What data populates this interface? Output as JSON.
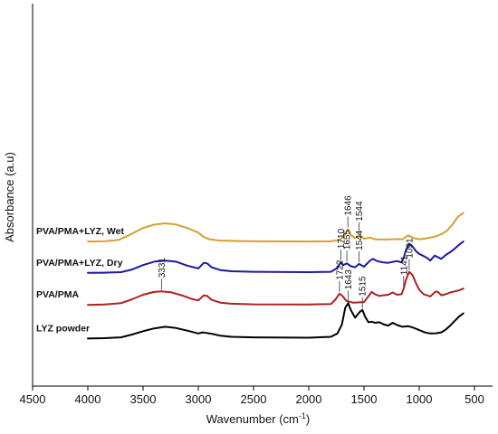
{
  "chart_data": {
    "type": "line",
    "title": "",
    "xlabel": "Wavenumber (cm",
    "xlabel_sup": "-1",
    "xlabel_close": ")",
    "ylabel": "Absorbance (a.u)",
    "xlim": [
      4500,
      500
    ],
    "x_ticks": [
      "4500",
      "4000",
      "3500",
      "3000",
      "2500",
      "2000",
      "1500",
      "1000",
      "500"
    ],
    "series": [
      {
        "name": "PVA/PMA+LYZ, Wet",
        "color": "#d4a030",
        "offset": 8.6,
        "points": [
          [
            4000,
            0.1
          ],
          [
            3850,
            0.12
          ],
          [
            3720,
            0.25
          ],
          [
            3620,
            0.7
          ],
          [
            3500,
            1.3
          ],
          [
            3400,
            1.6
          ],
          [
            3300,
            1.72
          ],
          [
            3200,
            1.62
          ],
          [
            3100,
            1.3
          ],
          [
            3000,
            0.9
          ],
          [
            2950,
            0.5
          ],
          [
            2900,
            0.3
          ],
          [
            2800,
            0.18
          ],
          [
            2500,
            0.12
          ],
          [
            2000,
            0.1
          ],
          [
            1800,
            0.12
          ],
          [
            1720,
            0.25
          ],
          [
            1680,
            0.6
          ],
          [
            1646,
            1.2
          ],
          [
            1620,
            0.7
          ],
          [
            1580,
            0.4
          ],
          [
            1544,
            0.7
          ],
          [
            1500,
            0.35
          ],
          [
            1450,
            0.45
          ],
          [
            1400,
            0.3
          ],
          [
            1300,
            0.28
          ],
          [
            1200,
            0.32
          ],
          [
            1150,
            0.3
          ],
          [
            1100,
            0.65
          ],
          [
            1050,
            0.4
          ],
          [
            1000,
            0.3
          ],
          [
            950,
            0.35
          ],
          [
            900,
            0.45
          ],
          [
            850,
            0.55
          ],
          [
            800,
            0.75
          ],
          [
            750,
            1.05
          ],
          [
            700,
            1.6
          ],
          [
            650,
            2.3
          ],
          [
            600,
            2.65
          ]
        ]
      },
      {
        "name": "PVA/PMA+LYZ, Dry",
        "color": "#1a1aa0",
        "offset": 5.85,
        "points": [
          [
            4000,
            0.05
          ],
          [
            3850,
            0.07
          ],
          [
            3700,
            0.12
          ],
          [
            3600,
            0.35
          ],
          [
            3500,
            0.75
          ],
          [
            3400,
            1.05
          ],
          [
            3300,
            1.15
          ],
          [
            3200,
            1.05
          ],
          [
            3100,
            0.7
          ],
          [
            3000,
            0.45
          ],
          [
            2950,
            0.95
          ],
          [
            2920,
            0.9
          ],
          [
            2880,
            0.55
          ],
          [
            2800,
            0.3
          ],
          [
            2700,
            0.2
          ],
          [
            2500,
            0.15
          ],
          [
            2000,
            0.12
          ],
          [
            1800,
            0.15
          ],
          [
            1740,
            0.5
          ],
          [
            1710,
            1.0
          ],
          [
            1690,
            0.75
          ],
          [
            1655,
            0.9
          ],
          [
            1620,
            0.65
          ],
          [
            1580,
            0.55
          ],
          [
            1544,
            0.85
          ],
          [
            1500,
            0.6
          ],
          [
            1450,
            1.1
          ],
          [
            1420,
            1.3
          ],
          [
            1380,
            1.1
          ],
          [
            1330,
            1.0
          ],
          [
            1280,
            0.95
          ],
          [
            1230,
            1.05
          ],
          [
            1200,
            1.1
          ],
          [
            1160,
            1.0
          ],
          [
            1140,
            1.4
          ],
          [
            1120,
            2.1
          ],
          [
            1091,
            2.65
          ],
          [
            1060,
            2.4
          ],
          [
            1030,
            2.0
          ],
          [
            1000,
            1.75
          ],
          [
            960,
            1.55
          ],
          [
            930,
            1.4
          ],
          [
            900,
            1.15
          ],
          [
            860,
            1.6
          ],
          [
            840,
            1.5
          ],
          [
            800,
            1.3
          ],
          [
            760,
            1.65
          ],
          [
            720,
            1.9
          ],
          [
            680,
            2.2
          ],
          [
            640,
            2.55
          ],
          [
            600,
            2.85
          ]
        ]
      },
      {
        "name": "PVA/PMA",
        "color": "#b02020",
        "offset": 3.0,
        "points": [
          [
            4000,
            0.05
          ],
          [
            3850,
            0.08
          ],
          [
            3700,
            0.2
          ],
          [
            3600,
            0.55
          ],
          [
            3500,
            0.95
          ],
          [
            3400,
            1.2
          ],
          [
            3331,
            1.25
          ],
          [
            3250,
            1.18
          ],
          [
            3150,
            0.9
          ],
          [
            3050,
            0.55
          ],
          [
            3000,
            0.45
          ],
          [
            2950,
            0.9
          ],
          [
            2920,
            0.85
          ],
          [
            2880,
            0.5
          ],
          [
            2800,
            0.25
          ],
          [
            2700,
            0.15
          ],
          [
            2500,
            0.1
          ],
          [
            2000,
            0.08
          ],
          [
            1800,
            0.12
          ],
          [
            1760,
            0.5
          ],
          [
            1722,
            1.05
          ],
          [
            1700,
            0.9
          ],
          [
            1660,
            0.4
          ],
          [
            1600,
            0.25
          ],
          [
            1500,
            0.3
          ],
          [
            1430,
            1.2
          ],
          [
            1400,
            1.0
          ],
          [
            1360,
            0.85
          ],
          [
            1330,
            0.9
          ],
          [
            1280,
            0.95
          ],
          [
            1240,
            1.15
          ],
          [
            1200,
            0.95
          ],
          [
            1160,
            1.0
          ],
          [
            1141,
            1.5
          ],
          [
            1120,
            2.3
          ],
          [
            1091,
            3.0
          ],
          [
            1060,
            2.7
          ],
          [
            1030,
            2.0
          ],
          [
            1000,
            1.4
          ],
          [
            960,
            1.0
          ],
          [
            930,
            0.9
          ],
          [
            900,
            0.8
          ],
          [
            850,
            1.25
          ],
          [
            830,
            1.2
          ],
          [
            800,
            0.9
          ],
          [
            760,
            1.0
          ],
          [
            720,
            1.15
          ],
          [
            680,
            1.25
          ],
          [
            640,
            1.35
          ],
          [
            600,
            1.5
          ]
        ]
      },
      {
        "name": "LYZ powder",
        "color": "#000000",
        "offset": 0.0,
        "points": [
          [
            4000,
            0.05
          ],
          [
            3850,
            0.08
          ],
          [
            3700,
            0.15
          ],
          [
            3600,
            0.4
          ],
          [
            3500,
            0.7
          ],
          [
            3400,
            0.95
          ],
          [
            3300,
            1.1
          ],
          [
            3200,
            0.98
          ],
          [
            3100,
            0.75
          ],
          [
            3000,
            0.5
          ],
          [
            2960,
            0.6
          ],
          [
            2930,
            0.55
          ],
          [
            2870,
            0.45
          ],
          [
            2800,
            0.3
          ],
          [
            2700,
            0.2
          ],
          [
            2500,
            0.15
          ],
          [
            2000,
            0.12
          ],
          [
            1800,
            0.2
          ],
          [
            1740,
            0.5
          ],
          [
            1700,
            1.3
          ],
          [
            1670,
            2.8
          ],
          [
            1643,
            3.2
          ],
          [
            1620,
            2.6
          ],
          [
            1580,
            1.9
          ],
          [
            1540,
            2.4
          ],
          [
            1515,
            2.6
          ],
          [
            1490,
            2.0
          ],
          [
            1460,
            1.5
          ],
          [
            1430,
            1.55
          ],
          [
            1400,
            1.45
          ],
          [
            1360,
            1.5
          ],
          [
            1320,
            1.3
          ],
          [
            1280,
            1.2
          ],
          [
            1240,
            1.45
          ],
          [
            1200,
            1.25
          ],
          [
            1150,
            1.1
          ],
          [
            1100,
            1.15
          ],
          [
            1050,
            1.0
          ],
          [
            1000,
            0.8
          ],
          [
            950,
            0.6
          ],
          [
            900,
            0.5
          ],
          [
            850,
            0.52
          ],
          [
            800,
            0.6
          ],
          [
            760,
            0.85
          ],
          [
            720,
            1.2
          ],
          [
            680,
            1.6
          ],
          [
            640,
            2.0
          ],
          [
            600,
            2.3
          ]
        ]
      }
    ],
    "annotations": [
      {
        "label": "1646",
        "x": 1646,
        "series": 0
      },
      {
        "label": "1544",
        "x": 1544,
        "series": 0
      },
      {
        "label": "1710",
        "x": 1710,
        "series": 1
      },
      {
        "label": "1655",
        "x": 1655,
        "series": 1
      },
      {
        "label": "1544",
        "x": 1544,
        "series": 1
      },
      {
        "label": "3331",
        "x": 3331,
        "series": 2
      },
      {
        "label": "1722",
        "x": 1722,
        "series": 2
      },
      {
        "label": "1141",
        "x": 1141,
        "series": 2
      },
      {
        "label": "1091",
        "x": 1091,
        "series": 2
      },
      {
        "label": "1643",
        "x": 1643,
        "series": 3
      },
      {
        "label": "1515",
        "x": 1515,
        "series": 3
      }
    ],
    "grid": false,
    "legend": "inline-left"
  }
}
